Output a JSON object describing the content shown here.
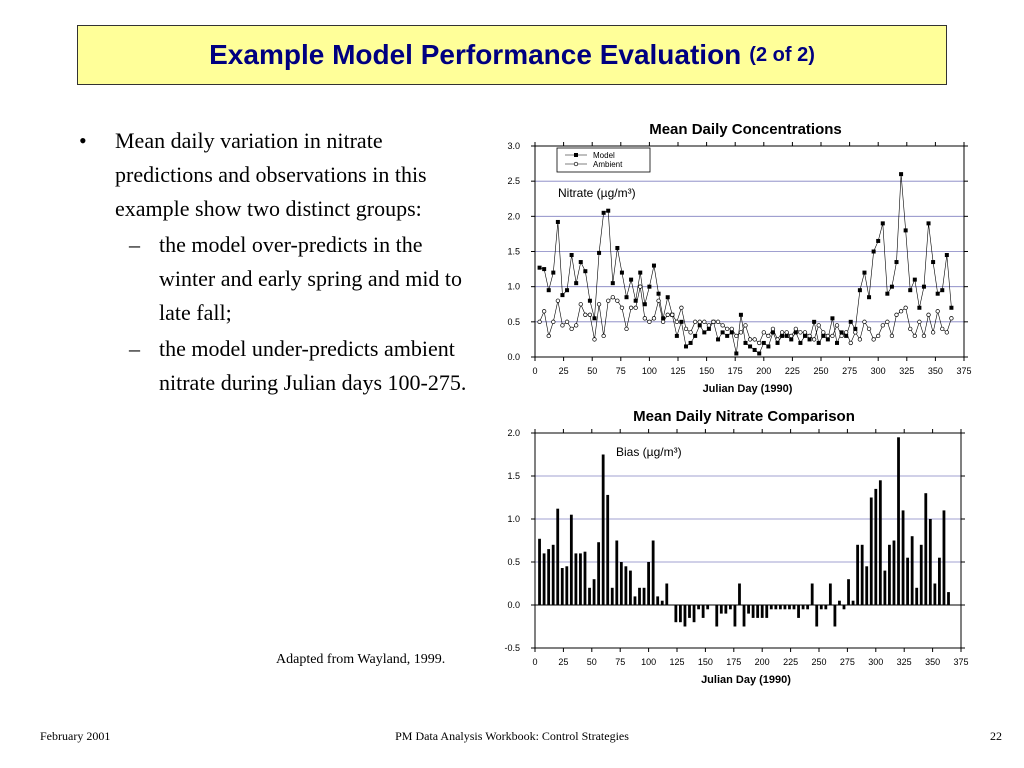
{
  "slide": {
    "title": "Example Model Performance Evaluation",
    "title_suffix": "(2 of 2)",
    "bullets": [
      {
        "text": "Mean daily variation in nitrate predictions and observations in this example show two distinct groups:",
        "subs": [
          "the model over-predicts in the winter and early spring and mid to late fall;",
          "the model under-predicts ambient nitrate during Julian days 100-275."
        ]
      }
    ],
    "source": "Adapted from Wayland, 1999.",
    "footer": {
      "left": "February 2001",
      "center": "PM Data Analysis Workbook: Control Strategies",
      "right": "22"
    }
  },
  "chart_data": [
    {
      "type": "line",
      "title": "Mean Daily Concentrations",
      "xlabel": "Julian Day (1990)",
      "annotation": "Nitrate (µg/m³)",
      "legend": "upper left",
      "grid": true,
      "xlim": [
        0,
        375
      ],
      "xticks": [
        0,
        25,
        50,
        75,
        100,
        125,
        150,
        175,
        200,
        225,
        250,
        275,
        300,
        325,
        350,
        375
      ],
      "ylim": [
        0,
        3
      ],
      "yticks": [
        {
          "value": 0,
          "label": "0.0"
        },
        {
          "value": 0.5,
          "label": "0.5"
        },
        {
          "value": 1,
          "label": "1.0"
        },
        {
          "value": 1.5,
          "label": "1.5"
        },
        {
          "value": 2,
          "label": "2.0"
        },
        {
          "value": 2.5,
          "label": "2.5"
        },
        {
          "value": 3,
          "label": "3.0"
        }
      ],
      "x": [
        4,
        8,
        12,
        16,
        20,
        24,
        28,
        32,
        36,
        40,
        44,
        48,
        52,
        56,
        60,
        64,
        68,
        72,
        76,
        80,
        84,
        88,
        92,
        96,
        100,
        104,
        108,
        112,
        116,
        120,
        124,
        128,
        132,
        136,
        140,
        144,
        148,
        152,
        156,
        160,
        164,
        168,
        172,
        176,
        180,
        184,
        188,
        192,
        196,
        200,
        204,
        208,
        212,
        216,
        220,
        224,
        228,
        232,
        236,
        240,
        244,
        248,
        252,
        256,
        260,
        264,
        268,
        272,
        276,
        280,
        284,
        288,
        292,
        296,
        300,
        304,
        308,
        312,
        316,
        320,
        324,
        328,
        332,
        336,
        340,
        344,
        348,
        352,
        356,
        360,
        364
      ],
      "series": [
        {
          "name": "Model",
          "color": "#000000",
          "marker": "square",
          "values": [
            1.27,
            1.25,
            0.95,
            1.2,
            1.92,
            0.88,
            0.95,
            1.45,
            1.05,
            1.35,
            1.22,
            0.8,
            0.55,
            1.48,
            2.05,
            2.08,
            1.05,
            1.55,
            1.2,
            0.85,
            1.1,
            0.8,
            1.2,
            0.75,
            1.0,
            1.3,
            0.9,
            0.55,
            0.85,
            0.6,
            0.3,
            0.5,
            0.15,
            0.2,
            0.3,
            0.45,
            0.35,
            0.4,
            0.5,
            0.25,
            0.35,
            0.3,
            0.35,
            0.05,
            0.6,
            0.2,
            0.15,
            0.1,
            0.05,
            0.2,
            0.15,
            0.35,
            0.2,
            0.3,
            0.3,
            0.25,
            0.35,
            0.2,
            0.3,
            0.25,
            0.5,
            0.2,
            0.3,
            0.25,
            0.55,
            0.2,
            0.35,
            0.3,
            0.5,
            0.4,
            0.95,
            1.2,
            0.85,
            1.5,
            1.65,
            1.9,
            0.9,
            1.0,
            1.35,
            2.6,
            1.8,
            0.95,
            1.1,
            0.7,
            1.0,
            1.9,
            1.35,
            0.9,
            0.95,
            1.45,
            0.7
          ]
        },
        {
          "name": "Ambient",
          "color": "#000000",
          "marker": "circle",
          "values": [
            0.5,
            0.65,
            0.3,
            0.5,
            0.8,
            0.45,
            0.5,
            0.4,
            0.45,
            0.75,
            0.6,
            0.6,
            0.25,
            0.75,
            0.3,
            0.8,
            0.85,
            0.8,
            0.7,
            0.4,
            0.7,
            0.7,
            1.0,
            0.55,
            0.5,
            0.55,
            0.8,
            0.5,
            0.6,
            0.6,
            0.5,
            0.7,
            0.4,
            0.35,
            0.5,
            0.5,
            0.5,
            0.45,
            0.5,
            0.5,
            0.45,
            0.4,
            0.4,
            0.3,
            0.35,
            0.45,
            0.25,
            0.25,
            0.2,
            0.35,
            0.3,
            0.4,
            0.25,
            0.35,
            0.35,
            0.3,
            0.4,
            0.35,
            0.35,
            0.3,
            0.25,
            0.45,
            0.35,
            0.3,
            0.3,
            0.45,
            0.3,
            0.35,
            0.2,
            0.35,
            0.25,
            0.5,
            0.4,
            0.25,
            0.3,
            0.45,
            0.5,
            0.3,
            0.6,
            0.65,
            0.7,
            0.4,
            0.3,
            0.5,
            0.3,
            0.6,
            0.35,
            0.65,
            0.4,
            0.35,
            0.55
          ]
        }
      ]
    },
    {
      "type": "bar",
      "title": "Mean Daily Nitrate Comparison",
      "xlabel": "Julian Day (1990)",
      "annotation": "Bias (µg/m³)",
      "grid": true,
      "color": "#000000",
      "xlim": [
        0,
        375
      ],
      "xticks": [
        0,
        25,
        50,
        75,
        100,
        125,
        150,
        175,
        200,
        225,
        250,
        275,
        300,
        325,
        350,
        375
      ],
      "ylim": [
        -0.5,
        2
      ],
      "yticks": [
        {
          "value": -0.5,
          "label": "-0.5"
        },
        {
          "value": 0,
          "label": "0.0"
        },
        {
          "value": 0.5,
          "label": "0.5"
        },
        {
          "value": 1,
          "label": "1.0"
        },
        {
          "value": 1.5,
          "label": "1.5"
        },
        {
          "value": 2,
          "label": "2.0"
        }
      ],
      "x": [
        4,
        8,
        12,
        16,
        20,
        24,
        28,
        32,
        36,
        40,
        44,
        48,
        52,
        56,
        60,
        64,
        68,
        72,
        76,
        80,
        84,
        88,
        92,
        96,
        100,
        104,
        108,
        112,
        116,
        120,
        124,
        128,
        132,
        136,
        140,
        144,
        148,
        152,
        156,
        160,
        164,
        168,
        172,
        176,
        180,
        184,
        188,
        192,
        196,
        200,
        204,
        208,
        212,
        216,
        220,
        224,
        228,
        232,
        236,
        240,
        244,
        248,
        252,
        256,
        260,
        264,
        268,
        272,
        276,
        280,
        284,
        288,
        292,
        296,
        300,
        304,
        308,
        312,
        316,
        320,
        324,
        328,
        332,
        336,
        340,
        344,
        348,
        352,
        356,
        360,
        364
      ],
      "values": [
        0.77,
        0.6,
        0.65,
        0.7,
        1.12,
        0.43,
        0.45,
        1.05,
        0.6,
        0.6,
        0.62,
        0.2,
        0.3,
        0.73,
        1.75,
        1.28,
        0.2,
        0.75,
        0.5,
        0.45,
        0.4,
        0.1,
        0.2,
        0.2,
        0.5,
        0.75,
        0.1,
        0.05,
        0.25,
        0,
        -0.2,
        -0.2,
        -0.25,
        -0.15,
        -0.2,
        -0.05,
        -0.15,
        -0.05,
        0,
        -0.25,
        -0.1,
        -0.1,
        -0.05,
        -0.25,
        0.25,
        -0.25,
        -0.1,
        -0.15,
        -0.15,
        -0.15,
        -0.15,
        -0.05,
        -0.05,
        -0.05,
        -0.05,
        -0.05,
        -0.05,
        -0.15,
        -0.05,
        -0.05,
        0.25,
        -0.25,
        -0.05,
        -0.05,
        0.25,
        -0.25,
        0.05,
        -0.05,
        0.3,
        0.05,
        0.7,
        0.7,
        0.45,
        1.25,
        1.35,
        1.45,
        0.4,
        0.7,
        0.75,
        1.95,
        1.1,
        0.55,
        0.8,
        0.2,
        0.7,
        1.3,
        1.0,
        0.25,
        0.55,
        1.1,
        0.15
      ]
    }
  ]
}
